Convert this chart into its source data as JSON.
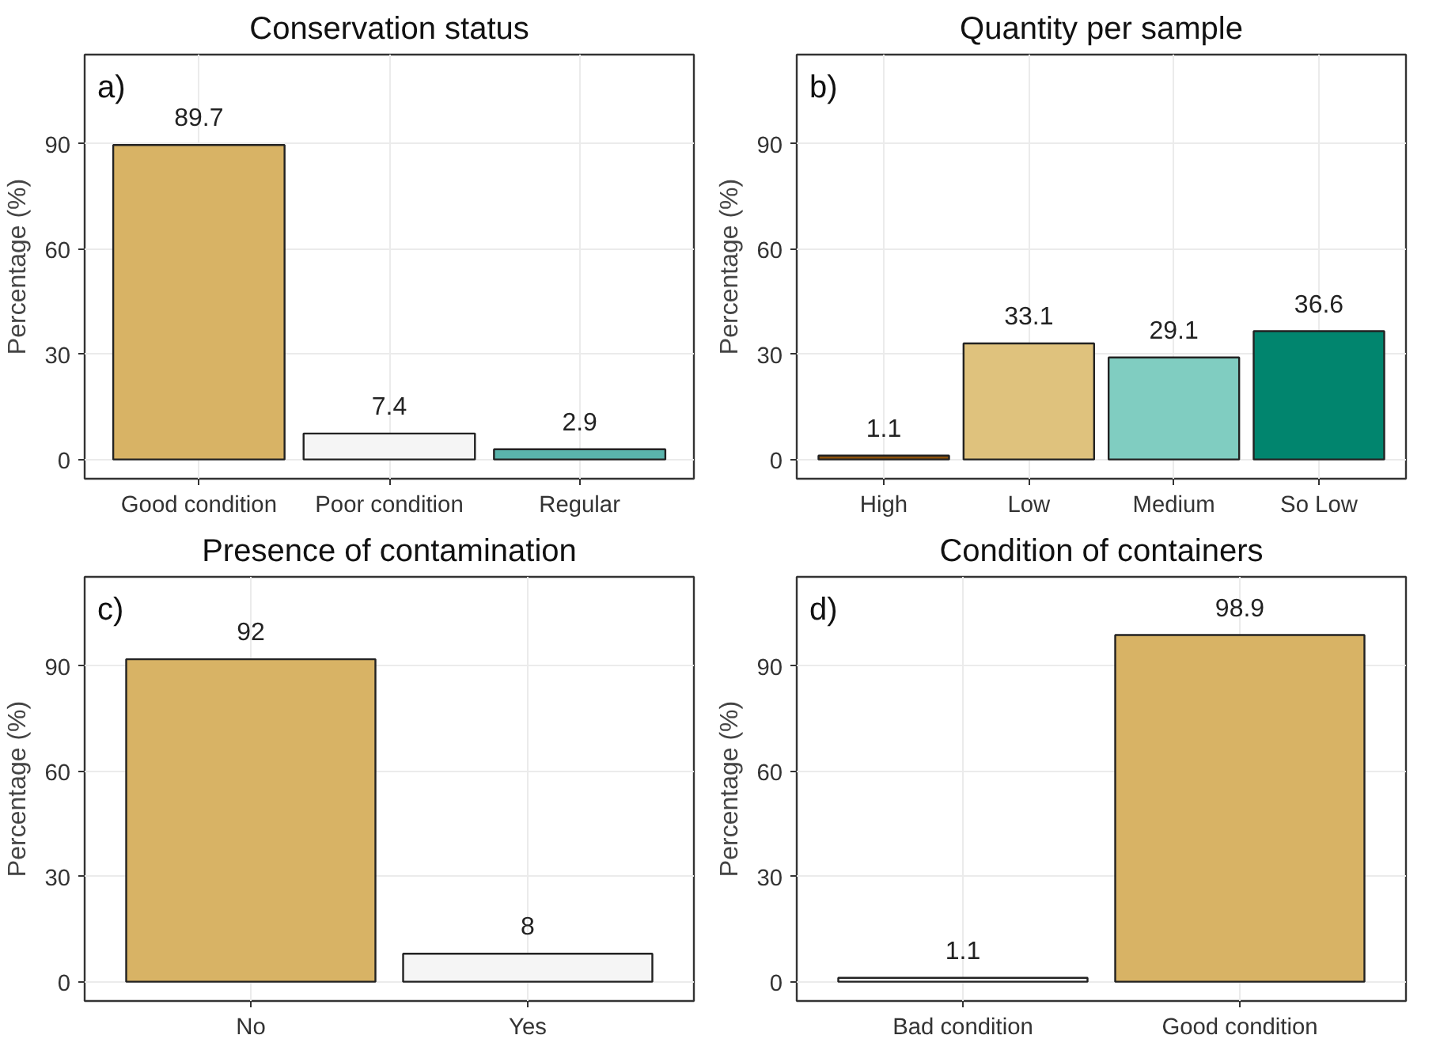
{
  "chart_data": [
    {
      "type": "bar",
      "title": "Conservation status",
      "ylabel": "Percentage (%)",
      "annotations": [
        "a)"
      ],
      "categories": [
        "Good condition",
        "Poor condition",
        "Regular"
      ],
      "values": [
        89.7,
        7.4,
        2.9
      ],
      "colors": [
        "#d8b365",
        "#f5f5f5",
        "#5ab4ac"
      ],
      "ylim": [
        -5.5,
        115.5
      ],
      "yticks": [
        0,
        30,
        60,
        90
      ],
      "grid": true,
      "data_labels": true
    },
    {
      "type": "bar",
      "title": "Quantity per sample",
      "ylabel": "Percentage (%)",
      "annotations": [
        "b)"
      ],
      "categories": [
        "High",
        "Low",
        "Medium",
        "So Low"
      ],
      "values": [
        1.1,
        33.1,
        29.1,
        36.6
      ],
      "colors": [
        "#8c510a",
        "#dfc27d",
        "#80cdc1",
        "#01856e"
      ],
      "ylim": [
        -5.5,
        115.5
      ],
      "yticks": [
        0,
        30,
        60,
        90
      ],
      "grid": true,
      "data_labels": true
    },
    {
      "type": "bar",
      "title": "Presence of contamination",
      "ylabel": "Percentage (%)",
      "annotations": [
        "c)"
      ],
      "categories": [
        "No",
        "Yes"
      ],
      "values": [
        92,
        8
      ],
      "colors": [
        "#d8b365",
        "#f5f5f5"
      ],
      "ylim": [
        -5.5,
        115.5
      ],
      "yticks": [
        0,
        30,
        60,
        90
      ],
      "grid": true,
      "data_labels": true
    },
    {
      "type": "bar",
      "title": "Condition of containers",
      "ylabel": "Percentage (%)",
      "annotations": [
        "d)"
      ],
      "categories": [
        "Bad condition",
        "Good condition"
      ],
      "values": [
        1.1,
        98.9
      ],
      "colors": [
        "#f5f5f5",
        "#d8b365"
      ],
      "ylim": [
        -5.5,
        115.5
      ],
      "yticks": [
        0,
        30,
        60,
        90
      ],
      "grid": true,
      "data_labels": true
    }
  ]
}
